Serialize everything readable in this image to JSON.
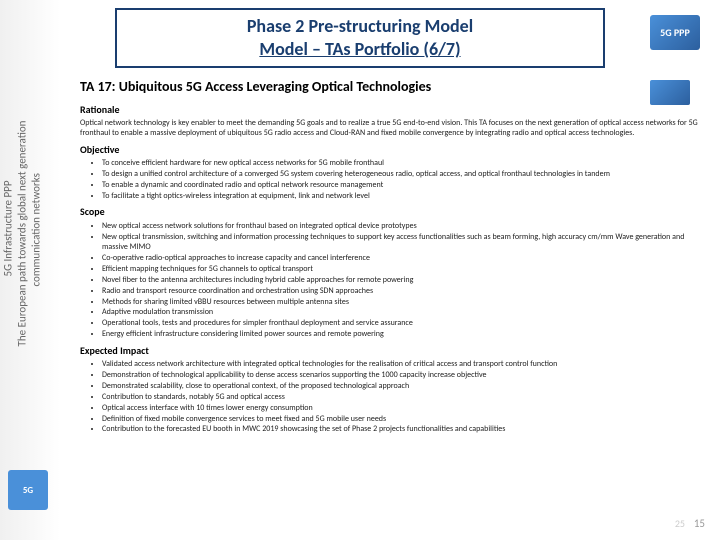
{
  "sidebar": {
    "text1": "5G Infrastructure PPP",
    "text2": "The European path towards global next generation",
    "text3": "communication networks",
    "logo": "5G"
  },
  "topLogo": "5G PPP",
  "title": {
    "line1": "Phase 2 Pre-structuring Model",
    "line2": "Model – TAs Portfolio (6/7)"
  },
  "taHeading": "TA 17: Ubiquitous 5G Access Leveraging Optical Technologies",
  "rationale": {
    "head": "Rationale",
    "text": "Optical network technology is key enabler to meet the demanding 5G goals and to realize a true 5G end-to-end vision. This TA focuses on the next generation of optical access networks for 5G fronthaul to enable a massive deployment of ubiquitous 5G radio access and Cloud-RAN and fixed mobile convergence by integrating radio and optical access technologies."
  },
  "objective": {
    "head": "Objective",
    "items": [
      "To conceive efficient hardware for new optical access networks for 5G mobile fronthaul",
      "To design a unified control architecture of a converged 5G system covering heterogeneous radio, optical access, and optical fronthaul technologies in tandem",
      "To enable a dynamic and coordinated radio and optical network resource management",
      "To facilitate a tight optics-wireless integration at equipment, link and network level"
    ]
  },
  "scope": {
    "head": "Scope",
    "items": [
      "New optical access network solutions for fronthaul based on integrated optical device prototypes",
      "New optical transmission, switching and information processing techniques to support key access functionalities such as beam forming, high accuracy cm/mm Wave generation and massive MIMO",
      "Co-operative radio-optical approaches to increase capacity and cancel interference",
      "Efficient mapping techniques for 5G channels to optical transport",
      "Novel fiber to the antenna architectures including hybrid cable approaches for remote powering",
      "Radio and transport resource coordination and orchestration using SDN approaches",
      "Methods for sharing limited vBBU resources between multiple antenna sites",
      "Adaptive modulation transmission",
      "Operational tools, tests and procedures for simpler fronthaul deployment and service assurance",
      "Energy efficient infrastructure considering limited power sources and remote powering"
    ]
  },
  "impact": {
    "head": "Expected Impact",
    "items": [
      "Validated access network architecture with integrated optical technologies for the realisation of critical access and transport control function",
      "Demonstration of technological applicability to dense access scenarios supporting the 1000 capacity increase objective",
      "Demonstrated scalability, close to operational context, of the proposed technological approach",
      "Contribution to standards, notably 5G and optical access",
      "Optical access interface with 10 times lower energy consumption",
      "Definition of fixed mobile convergence services to meet fixed and 5G mobile user needs",
      "Contribution to the forecasted EU booth in MWC 2019 showcasing the set of Phase 2 projects functionalities and capabilities"
    ]
  },
  "pageNum1": "25",
  "pageNum2": "15"
}
